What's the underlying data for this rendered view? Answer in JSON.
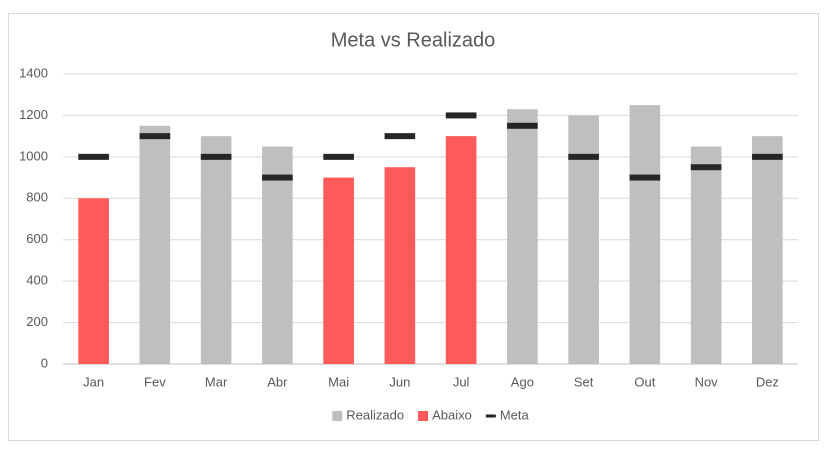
{
  "chart_data": {
    "type": "bar",
    "title": "Meta vs Realizado",
    "categories": [
      "Jan",
      "Fev",
      "Mar",
      "Abr",
      "Mai",
      "Jun",
      "Jul",
      "Ago",
      "Set",
      "Out",
      "Nov",
      "Dez"
    ],
    "series": [
      {
        "name": "Realizado",
        "type": "bar",
        "color": "#bfbfbf",
        "values": [
          null,
          1150,
          1100,
          1050,
          null,
          null,
          null,
          1230,
          1200,
          1250,
          1050,
          1100
        ]
      },
      {
        "name": "Abaixo",
        "type": "bar",
        "color": "#ff5a5a",
        "values": [
          800,
          null,
          null,
          null,
          900,
          950,
          1100,
          null,
          null,
          null,
          null,
          null
        ]
      },
      {
        "name": "Meta",
        "type": "marker",
        "color": "#262626",
        "values": [
          1000,
          1100,
          1000,
          900,
          1000,
          1100,
          1200,
          1150,
          1000,
          900,
          950,
          1000
        ]
      }
    ],
    "ylim": [
      0,
      1400
    ],
    "yticks": [
      0,
      200,
      400,
      600,
      800,
      1000,
      1200,
      1400
    ],
    "grid": true,
    "legend": "bottom"
  }
}
